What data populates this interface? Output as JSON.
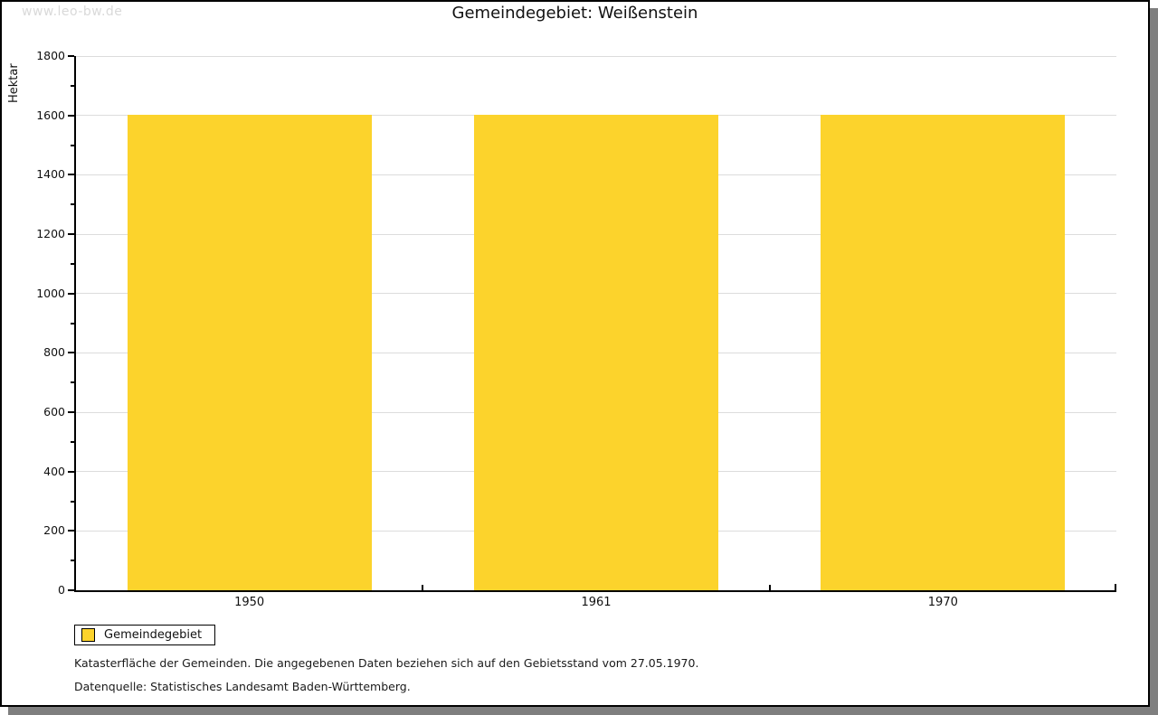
{
  "page": {
    "watermark": "www.leo-bw.de",
    "title": "Gemeindegebiet: Weißenstein"
  },
  "legend": {
    "label": "Gemeindegebiet",
    "swatch_color": "#fcd32c"
  },
  "footnotes": {
    "line1": "Katasterfläche der Gemeinden. Die angegebenen Daten beziehen sich auf den Gebietsstand vom 27.05.1970.",
    "line2": "Datenquelle: Statistisches Landesamt Baden-Württemberg."
  },
  "chart_data": {
    "type": "bar",
    "title": "Gemeindegebiet: Weißenstein",
    "categories": [
      "1950",
      "1961",
      "1970"
    ],
    "series": [
      {
        "name": "Gemeindegebiet",
        "values": [
          1603,
          1603,
          1603
        ]
      }
    ],
    "xlabel": "",
    "ylabel": "Hektar",
    "ylim": [
      0,
      1800
    ],
    "ytick_step": 200,
    "yminor_step": 100,
    "grid": true,
    "legend_position": "bottom-left",
    "bar_color": "#fcd32c",
    "gridline_color": "#dcdcdc",
    "axis_color": "#000000"
  }
}
